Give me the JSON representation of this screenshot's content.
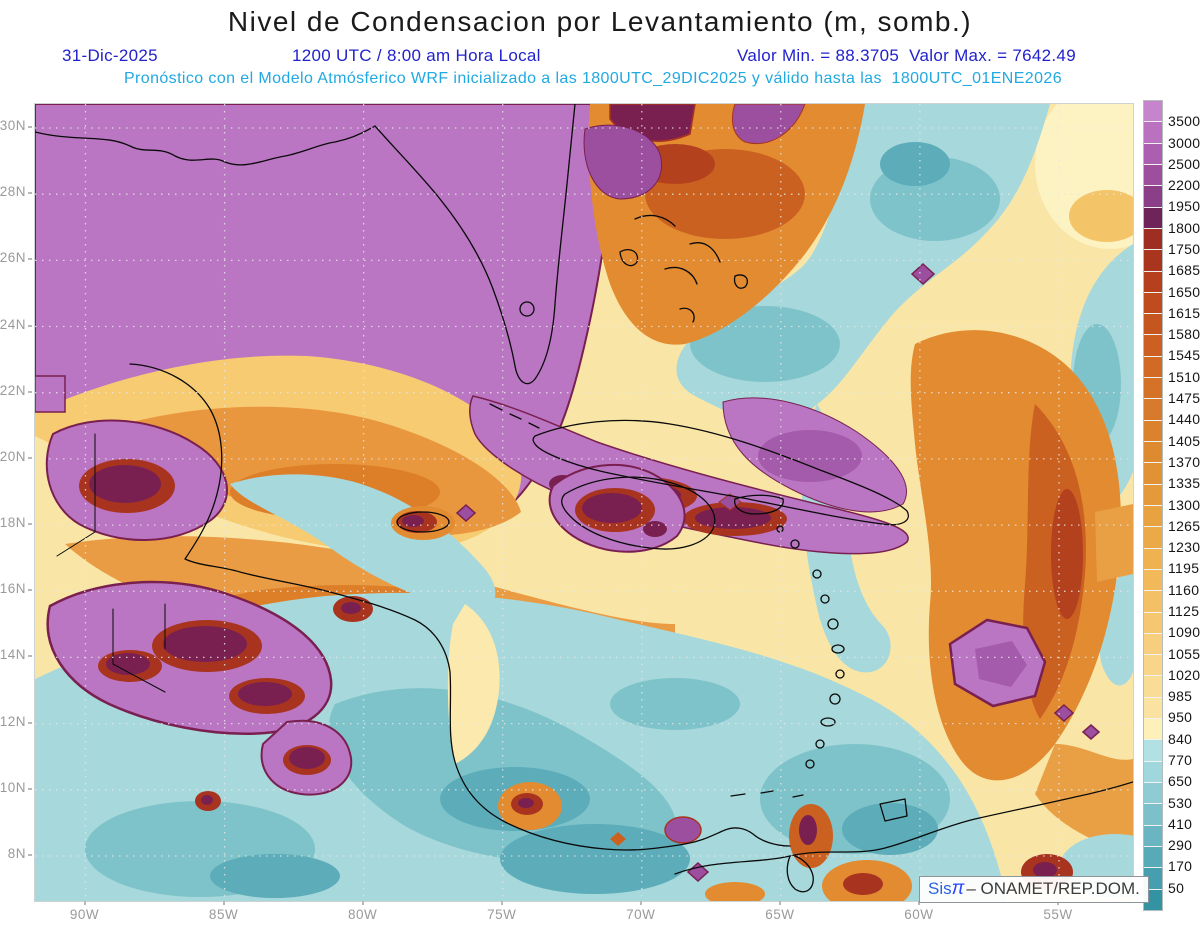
{
  "header": {
    "title": "Nivel de Condensacion por Levantamiento (m, somb.)",
    "date": "31-Dic-2025",
    "valid_time": "1200 UTC / 8:00 am Hora Local",
    "min_max": "Valor Min. = 88.3705  Valor Max. = 7642.49",
    "model_line": "Pronóstico con el Modelo Atmósferico WRF inicializado a las 1800UTC_29DIC2025 y válido hasta las  1800UTC_01ENE2026"
  },
  "watermark": {
    "brand": "Sis",
    "pi": "π",
    "org": "– ONAMET/REP.DOM."
  },
  "chart_data": {
    "type": "heatmap",
    "title": "Nivel de Condensacion por Levantamiento (m, somb.)",
    "units": "m",
    "value_min": 88.3705,
    "value_max": 7642.49,
    "valid_date": "31-Dic-2025",
    "valid_hour_utc": "1200 UTC",
    "valid_hour_local": "8:00 am Hora Local",
    "model": "WRF",
    "initialized": "1800UTC_29DIC2025",
    "valid_until": "1800UTC_01ENE2026",
    "grid": "dotted",
    "legend_position": "right",
    "x_axis": {
      "ticks": [
        "90W",
        "85W",
        "80W",
        "75W",
        "70W",
        "65W",
        "60W",
        "55W"
      ]
    },
    "y_axis": {
      "ticks": [
        "30N",
        "28N",
        "26N",
        "24N",
        "22N",
        "20N",
        "18N",
        "16N",
        "14N",
        "12N",
        "10N",
        "8N"
      ]
    },
    "colorbar": {
      "levels": [
        "3500",
        "3000",
        "2500",
        "2200",
        "1950",
        "1800",
        "1750",
        "1685",
        "1650",
        "1615",
        "1580",
        "1545",
        "1510",
        "1475",
        "1440",
        "1405",
        "1370",
        "1335",
        "1300",
        "1265",
        "1230",
        "1195",
        "1160",
        "1125",
        "1090",
        "1055",
        "1020",
        "985",
        "950",
        "840",
        "770",
        "650",
        "530",
        "410",
        "290",
        "170",
        "50"
      ],
      "segment_colors": [
        "#c584cb",
        "#b971c0",
        "#ac5fb0",
        "#9d4f9e",
        "#8a3f88",
        "#6e2359",
        "#9e2d22",
        "#aa351f",
        "#b6401e",
        "#bf4b1e",
        "#c5561f",
        "#cb6022",
        "#d06a25",
        "#d47228",
        "#d77a2b",
        "#db822e",
        "#de8a31",
        "#e19235",
        "#e49a3a",
        "#e8a240",
        "#ebaa47",
        "#eeb250",
        "#f1b95a",
        "#f3c065",
        "#f5c771",
        "#f7ce7d",
        "#f8d589",
        "#f9dc95",
        "#fae2a1",
        "#fdf0b8",
        "#b2e1e4",
        "#a0d7dc",
        "#8ecbd3",
        "#7cc0ca",
        "#6ab5c1",
        "#58aab8",
        "#469fae",
        "#3493a3"
      ]
    }
  }
}
